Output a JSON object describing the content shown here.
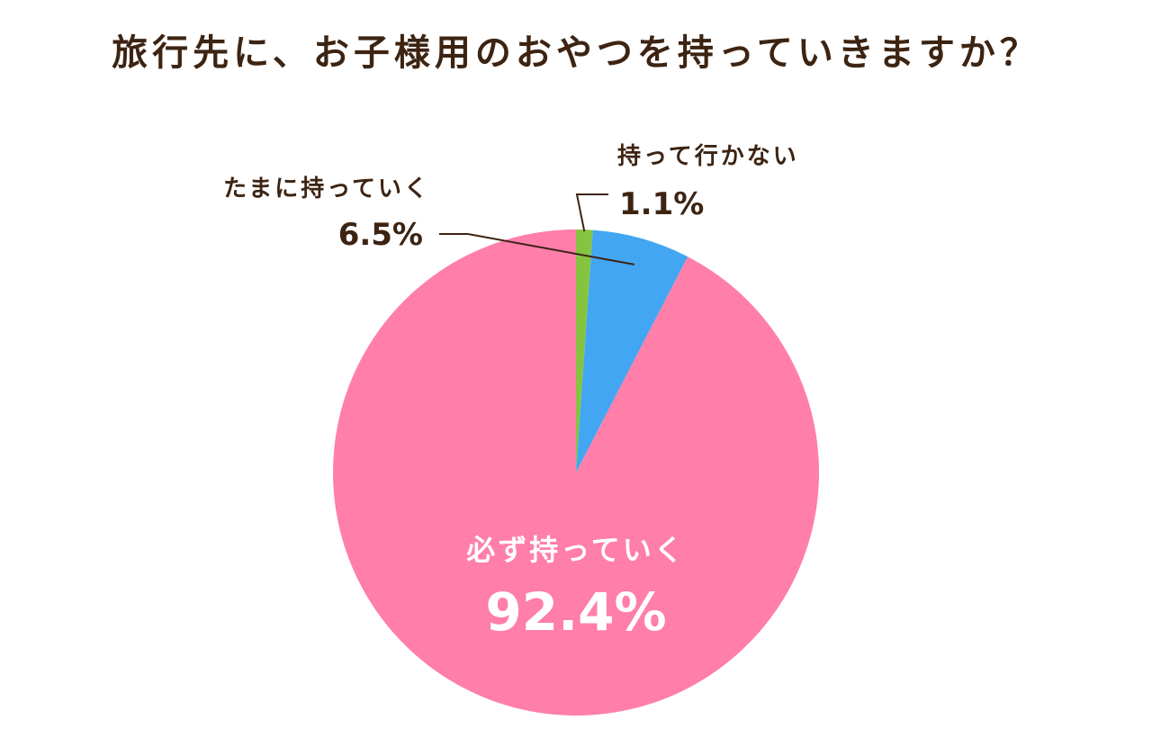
{
  "chart_data": {
    "type": "pie",
    "title": "旅行先に、お子様用のおやつを持っていきますか？",
    "unit": "%",
    "slices": [
      {
        "label": "必ず持っていく",
        "value": 92.4,
        "value_label": "92.4%",
        "color": "#ff7eaa"
      },
      {
        "label": "たまに持っていく",
        "value": 6.5,
        "value_label": "6.5%",
        "color": "#42a6f2"
      },
      {
        "label": "持って行かない",
        "value": 1.1,
        "value_label": "1.1%",
        "color": "#85c441"
      }
    ],
    "start": "12 o'clock",
    "direction": "counterclockwise",
    "legend": "none",
    "label_color": "#3d2412",
    "inner_label_color": "#ffffff"
  }
}
